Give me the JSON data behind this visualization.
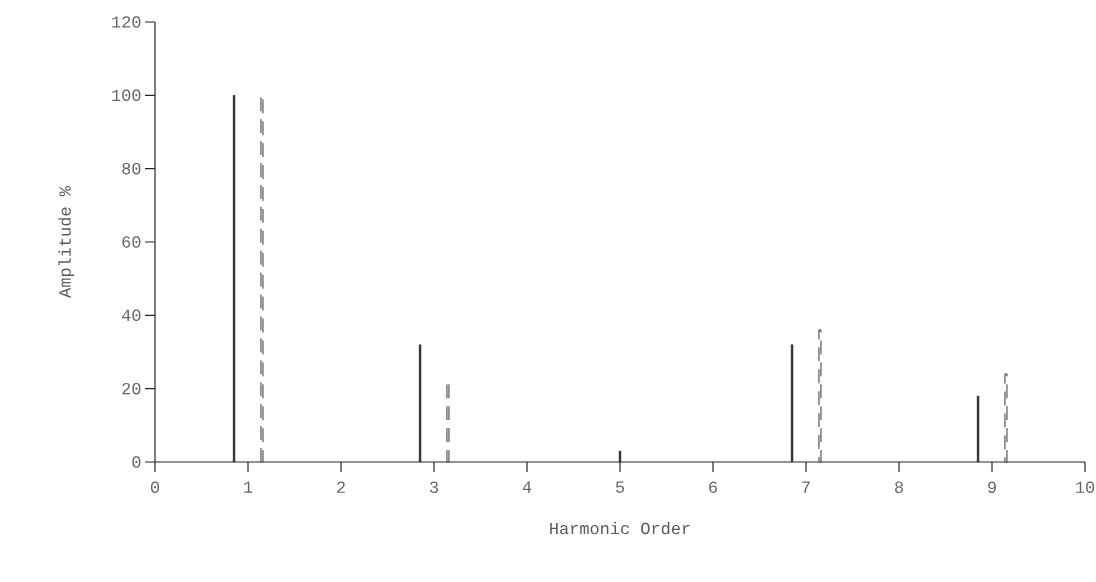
{
  "chart_data": {
    "type": "bar",
    "xlabel": "Harmonic Order",
    "ylabel": "Amplitude %",
    "xlim": [
      0,
      10
    ],
    "xticks": [
      0,
      1,
      2,
      3,
      4,
      5,
      6,
      7,
      8,
      9,
      10
    ],
    "ylim": [
      0,
      120
    ],
    "yticks": [
      0,
      20,
      40,
      60,
      80,
      100,
      120
    ],
    "series": [
      {
        "color": "#333333",
        "line_style": "solid",
        "x": [
          0.85,
          2.85,
          5,
          6.85,
          8.85
        ],
        "values": [
          100,
          32,
          3,
          32,
          18
        ]
      },
      {
        "color": "#333333",
        "line_style": "dashed",
        "x": [
          1.15,
          3.15,
          7.15,
          9.15
        ],
        "values": [
          100,
          22,
          36,
          24
        ]
      }
    ]
  }
}
